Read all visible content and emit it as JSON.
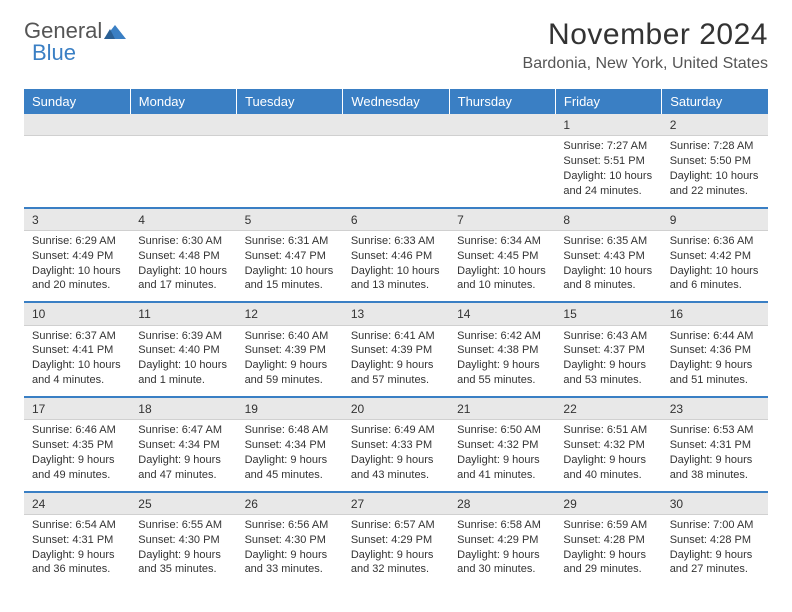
{
  "brand": {
    "word1": "General",
    "word2": "Blue"
  },
  "colors": {
    "header_bg": "#3a7fc4",
    "header_fg": "#ffffff",
    "daynum_bg": "#e8e8e8",
    "sep_border": "#3a7fc4",
    "text": "#333333",
    "logo_blue": "#3a7fc4",
    "logo_gray": "#555555"
  },
  "title": "November 2024",
  "location": "Bardonia, New York, United States",
  "weekdays": [
    "Sunday",
    "Monday",
    "Tuesday",
    "Wednesday",
    "Thursday",
    "Friday",
    "Saturday"
  ],
  "weeks": [
    [
      null,
      null,
      null,
      null,
      null,
      {
        "n": "1",
        "sunrise": "Sunrise: 7:27 AM",
        "sunset": "Sunset: 5:51 PM",
        "day1": "Daylight: 10 hours",
        "day2": "and 24 minutes."
      },
      {
        "n": "2",
        "sunrise": "Sunrise: 7:28 AM",
        "sunset": "Sunset: 5:50 PM",
        "day1": "Daylight: 10 hours",
        "day2": "and 22 minutes."
      }
    ],
    [
      {
        "n": "3",
        "sunrise": "Sunrise: 6:29 AM",
        "sunset": "Sunset: 4:49 PM",
        "day1": "Daylight: 10 hours",
        "day2": "and 20 minutes."
      },
      {
        "n": "4",
        "sunrise": "Sunrise: 6:30 AM",
        "sunset": "Sunset: 4:48 PM",
        "day1": "Daylight: 10 hours",
        "day2": "and 17 minutes."
      },
      {
        "n": "5",
        "sunrise": "Sunrise: 6:31 AM",
        "sunset": "Sunset: 4:47 PM",
        "day1": "Daylight: 10 hours",
        "day2": "and 15 minutes."
      },
      {
        "n": "6",
        "sunrise": "Sunrise: 6:33 AM",
        "sunset": "Sunset: 4:46 PM",
        "day1": "Daylight: 10 hours",
        "day2": "and 13 minutes."
      },
      {
        "n": "7",
        "sunrise": "Sunrise: 6:34 AM",
        "sunset": "Sunset: 4:45 PM",
        "day1": "Daylight: 10 hours",
        "day2": "and 10 minutes."
      },
      {
        "n": "8",
        "sunrise": "Sunrise: 6:35 AM",
        "sunset": "Sunset: 4:43 PM",
        "day1": "Daylight: 10 hours",
        "day2": "and 8 minutes."
      },
      {
        "n": "9",
        "sunrise": "Sunrise: 6:36 AM",
        "sunset": "Sunset: 4:42 PM",
        "day1": "Daylight: 10 hours",
        "day2": "and 6 minutes."
      }
    ],
    [
      {
        "n": "10",
        "sunrise": "Sunrise: 6:37 AM",
        "sunset": "Sunset: 4:41 PM",
        "day1": "Daylight: 10 hours",
        "day2": "and 4 minutes."
      },
      {
        "n": "11",
        "sunrise": "Sunrise: 6:39 AM",
        "sunset": "Sunset: 4:40 PM",
        "day1": "Daylight: 10 hours",
        "day2": "and 1 minute."
      },
      {
        "n": "12",
        "sunrise": "Sunrise: 6:40 AM",
        "sunset": "Sunset: 4:39 PM",
        "day1": "Daylight: 9 hours",
        "day2": "and 59 minutes."
      },
      {
        "n": "13",
        "sunrise": "Sunrise: 6:41 AM",
        "sunset": "Sunset: 4:39 PM",
        "day1": "Daylight: 9 hours",
        "day2": "and 57 minutes."
      },
      {
        "n": "14",
        "sunrise": "Sunrise: 6:42 AM",
        "sunset": "Sunset: 4:38 PM",
        "day1": "Daylight: 9 hours",
        "day2": "and 55 minutes."
      },
      {
        "n": "15",
        "sunrise": "Sunrise: 6:43 AM",
        "sunset": "Sunset: 4:37 PM",
        "day1": "Daylight: 9 hours",
        "day2": "and 53 minutes."
      },
      {
        "n": "16",
        "sunrise": "Sunrise: 6:44 AM",
        "sunset": "Sunset: 4:36 PM",
        "day1": "Daylight: 9 hours",
        "day2": "and 51 minutes."
      }
    ],
    [
      {
        "n": "17",
        "sunrise": "Sunrise: 6:46 AM",
        "sunset": "Sunset: 4:35 PM",
        "day1": "Daylight: 9 hours",
        "day2": "and 49 minutes."
      },
      {
        "n": "18",
        "sunrise": "Sunrise: 6:47 AM",
        "sunset": "Sunset: 4:34 PM",
        "day1": "Daylight: 9 hours",
        "day2": "and 47 minutes."
      },
      {
        "n": "19",
        "sunrise": "Sunrise: 6:48 AM",
        "sunset": "Sunset: 4:34 PM",
        "day1": "Daylight: 9 hours",
        "day2": "and 45 minutes."
      },
      {
        "n": "20",
        "sunrise": "Sunrise: 6:49 AM",
        "sunset": "Sunset: 4:33 PM",
        "day1": "Daylight: 9 hours",
        "day2": "and 43 minutes."
      },
      {
        "n": "21",
        "sunrise": "Sunrise: 6:50 AM",
        "sunset": "Sunset: 4:32 PM",
        "day1": "Daylight: 9 hours",
        "day2": "and 41 minutes."
      },
      {
        "n": "22",
        "sunrise": "Sunrise: 6:51 AM",
        "sunset": "Sunset: 4:32 PM",
        "day1": "Daylight: 9 hours",
        "day2": "and 40 minutes."
      },
      {
        "n": "23",
        "sunrise": "Sunrise: 6:53 AM",
        "sunset": "Sunset: 4:31 PM",
        "day1": "Daylight: 9 hours",
        "day2": "and 38 minutes."
      }
    ],
    [
      {
        "n": "24",
        "sunrise": "Sunrise: 6:54 AM",
        "sunset": "Sunset: 4:31 PM",
        "day1": "Daylight: 9 hours",
        "day2": "and 36 minutes."
      },
      {
        "n": "25",
        "sunrise": "Sunrise: 6:55 AM",
        "sunset": "Sunset: 4:30 PM",
        "day1": "Daylight: 9 hours",
        "day2": "and 35 minutes."
      },
      {
        "n": "26",
        "sunrise": "Sunrise: 6:56 AM",
        "sunset": "Sunset: 4:30 PM",
        "day1": "Daylight: 9 hours",
        "day2": "and 33 minutes."
      },
      {
        "n": "27",
        "sunrise": "Sunrise: 6:57 AM",
        "sunset": "Sunset: 4:29 PM",
        "day1": "Daylight: 9 hours",
        "day2": "and 32 minutes."
      },
      {
        "n": "28",
        "sunrise": "Sunrise: 6:58 AM",
        "sunset": "Sunset: 4:29 PM",
        "day1": "Daylight: 9 hours",
        "day2": "and 30 minutes."
      },
      {
        "n": "29",
        "sunrise": "Sunrise: 6:59 AM",
        "sunset": "Sunset: 4:28 PM",
        "day1": "Daylight: 9 hours",
        "day2": "and 29 minutes."
      },
      {
        "n": "30",
        "sunrise": "Sunrise: 7:00 AM",
        "sunset": "Sunset: 4:28 PM",
        "day1": "Daylight: 9 hours",
        "day2": "and 27 minutes."
      }
    ]
  ]
}
